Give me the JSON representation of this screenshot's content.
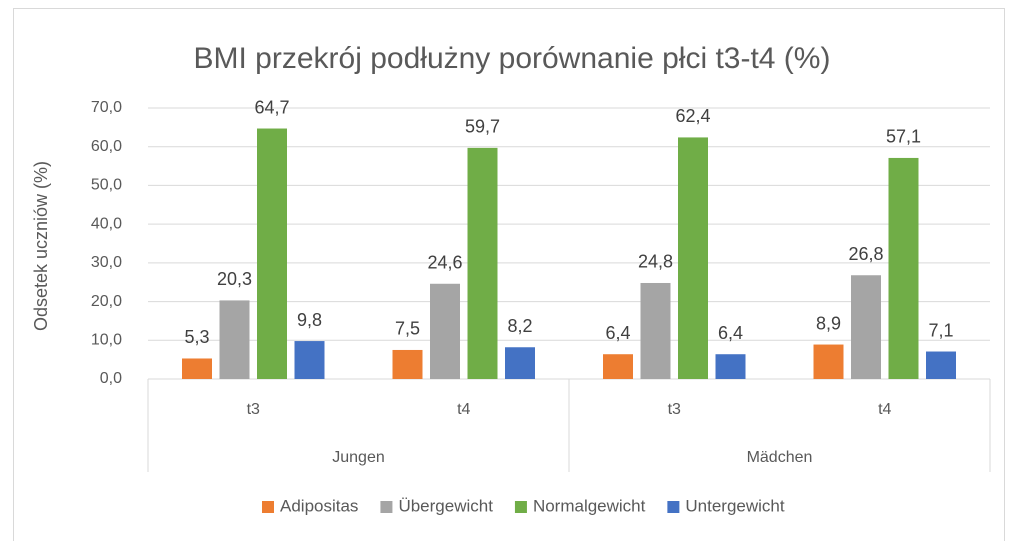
{
  "chart_data": {
    "type": "bar",
    "title": "BMI przekrój podłużny porównanie płci t3-t4 (%)",
    "y_label": "Odsetek uczniów  (%)",
    "categories": [
      "t3",
      "t4",
      "t3",
      "t4"
    ],
    "category_groups": [
      "Jungen",
      "Mädchen"
    ],
    "series": [
      {
        "name": "Adipositas",
        "color": "#ED7D31",
        "values": [
          5.3,
          7.5,
          6.4,
          8.9
        ],
        "value_labels": [
          "5,3",
          "7,5",
          "6,4",
          "8,9"
        ]
      },
      {
        "name": "Übergewicht",
        "color": "#A5A5A5",
        "values": [
          20.3,
          24.6,
          24.8,
          26.8
        ],
        "value_labels": [
          "20,3",
          "24,6",
          "24,8",
          "26,8"
        ]
      },
      {
        "name": "Normalgewicht",
        "color": "#70AD47",
        "values": [
          64.7,
          59.7,
          62.4,
          57.1
        ],
        "value_labels": [
          "64,7",
          "59,7",
          "62,4",
          "57,1"
        ]
      },
      {
        "name": "Untergewicht",
        "color": "#4472C4",
        "values": [
          9.8,
          8.2,
          6.4,
          7.1
        ],
        "value_labels": [
          "9,8",
          "8,2",
          "6,4",
          "7,1"
        ]
      }
    ],
    "ylim": [
      0,
      70
    ],
    "yticks": [
      {
        "value": 0,
        "label": "0,0"
      },
      {
        "value": 10,
        "label": "10,0"
      },
      {
        "value": 20,
        "label": "20,0"
      },
      {
        "value": 30,
        "label": "30,0"
      },
      {
        "value": 40,
        "label": "40,0"
      },
      {
        "value": 50,
        "label": "50,0"
      },
      {
        "value": 60,
        "label": "60,0"
      },
      {
        "value": 70,
        "label": "70,0"
      }
    ],
    "grid": true,
    "legend": "bottom"
  }
}
